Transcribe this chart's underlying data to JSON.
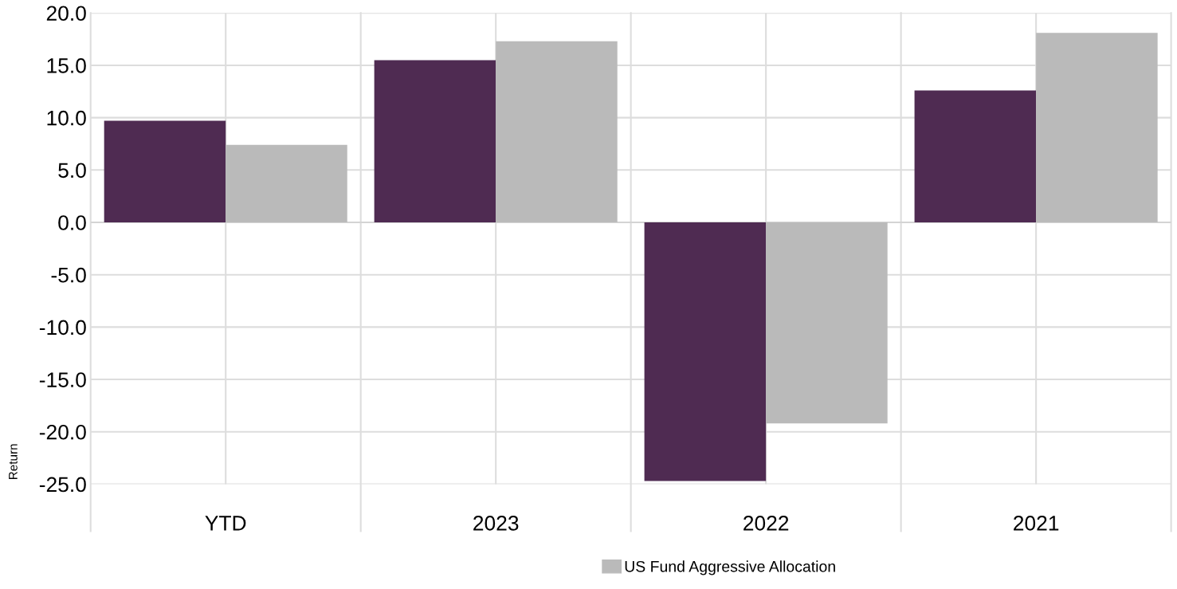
{
  "chart_data": {
    "type": "bar",
    "ylabel": "Return",
    "categories": [
      "YTD",
      "2023",
      "2022",
      "2021"
    ],
    "series": [
      {
        "color": "#4f2b52",
        "values": [
          9.7,
          15.5,
          -24.7,
          12.6
        ]
      },
      {
        "name": "US Fund Aggressive Allocation",
        "color": "#bababa",
        "values": [
          7.4,
          17.3,
          -19.2,
          18.1
        ]
      }
    ],
    "ylim": [
      -25,
      20
    ],
    "yticks": [
      {
        "value": 20,
        "label": "20.0"
      },
      {
        "value": 15,
        "label": "15.0"
      },
      {
        "value": 10,
        "label": "10.0"
      },
      {
        "value": 5,
        "label": "5.0"
      },
      {
        "value": 0,
        "label": "0.0"
      },
      {
        "value": -5,
        "label": "-5.0"
      },
      {
        "value": -10,
        "label": "-10.0"
      },
      {
        "value": -15,
        "label": "-15.0"
      },
      {
        "value": -20,
        "label": "-20.0"
      },
      {
        "value": -25,
        "label": "-25.0"
      }
    ],
    "grid": true,
    "legend": "bottom"
  }
}
